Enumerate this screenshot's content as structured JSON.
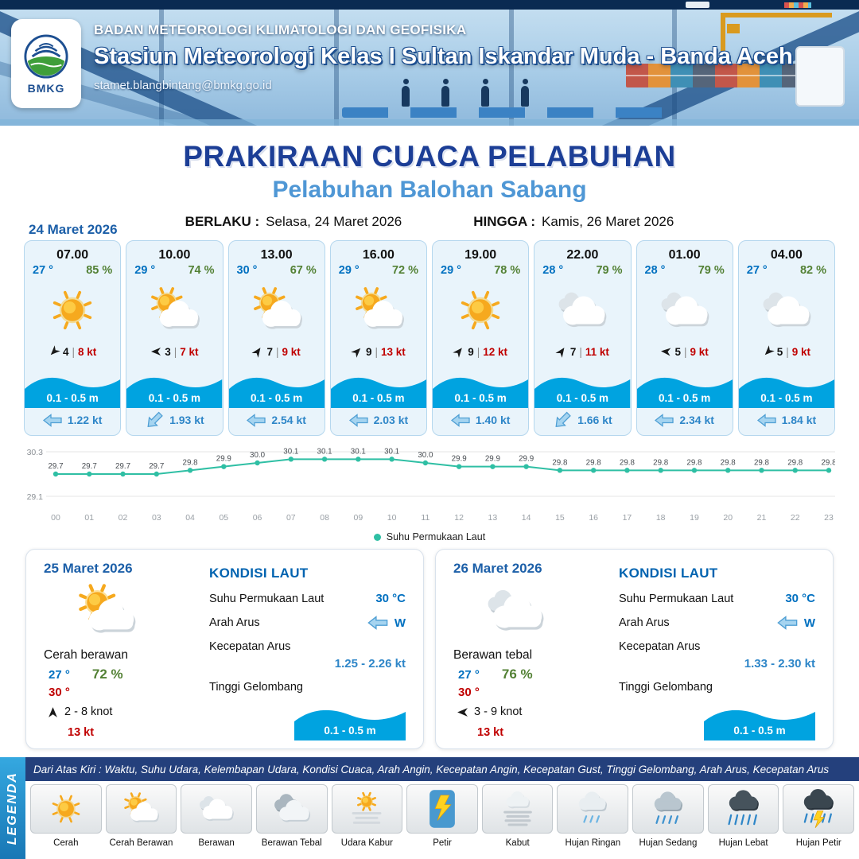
{
  "header": {
    "agency": "BADAN METEOROLOGI KLIMATOLOGI DAN GEOFISIKA",
    "station": "Stasiun Meteorologi Kelas I Sultan Iskandar Muda - Banda Aceh",
    "email": "stamet.blangbintang@bmkg.go.id",
    "logo_text": "BMKG"
  },
  "title": {
    "main": "PRAKIRAAN CUACA PELABUHAN",
    "port": "Pelabuhan Balohan Sabang",
    "berlaku_label": "BERLAKU :",
    "berlaku_value": "Selasa, 24 Maret 2026",
    "hingga_label": "HINGGA :",
    "hingga_value": "Kamis, 26 Maret 2026"
  },
  "forecast": {
    "date": "24 Maret 2026",
    "divider": "|",
    "cards": [
      {
        "time": "07.00",
        "temp": "27 °",
        "rh": "85 %",
        "icon": "cerah",
        "wind_rot": 135,
        "wind_speed": "4",
        "gust": "8 kt",
        "wave": "0.1 - 0.5 m",
        "cur_rot": 0,
        "current": "1.22 kt"
      },
      {
        "time": "10.00",
        "temp": "29 °",
        "rh": "74 %",
        "icon": "cerah-berawan",
        "wind_rot": 180,
        "wind_speed": "3",
        "gust": "7 kt",
        "wave": "0.1 - 0.5 m",
        "cur_rot": -45,
        "current": "1.93 kt"
      },
      {
        "time": "13.00",
        "temp": "30 °",
        "rh": "67 %",
        "icon": "cerah-berawan",
        "wind_rot": -55,
        "wind_speed": "7",
        "gust": "9 kt",
        "wave": "0.1 - 0.5 m",
        "cur_rot": 0,
        "current": "2.54 kt"
      },
      {
        "time": "16.00",
        "temp": "29 °",
        "rh": "72 %",
        "icon": "cerah-berawan",
        "wind_rot": -45,
        "wind_speed": "9",
        "gust": "13 kt",
        "wave": "0.1 - 0.5 m",
        "cur_rot": 0,
        "current": "2.03 kt"
      },
      {
        "time": "19.00",
        "temp": "29 °",
        "rh": "78 %",
        "icon": "cerah",
        "wind_rot": -50,
        "wind_speed": "9",
        "gust": "12 kt",
        "wave": "0.1 - 0.5 m",
        "cur_rot": 0,
        "current": "1.40 kt"
      },
      {
        "time": "22.00",
        "temp": "28 °",
        "rh": "79 %",
        "icon": "berawan",
        "wind_rot": -55,
        "wind_speed": "7",
        "gust": "11 kt",
        "wave": "0.1 - 0.5 m",
        "cur_rot": -45,
        "current": "1.66 kt"
      },
      {
        "time": "01.00",
        "temp": "28 °",
        "rh": "79 %",
        "icon": "berawan",
        "wind_rot": 185,
        "wind_speed": "5",
        "gust": "9 kt",
        "wave": "0.1 - 0.5 m",
        "cur_rot": 0,
        "current": "2.34 kt"
      },
      {
        "time": "04.00",
        "temp": "27 °",
        "rh": "82 %",
        "icon": "berawan",
        "wind_rot": 135,
        "wind_speed": "5",
        "gust": "9 kt",
        "wave": "0.1 - 0.5 m",
        "cur_rot": 0,
        "current": "1.84 kt"
      }
    ]
  },
  "chart_data": {
    "type": "line",
    "x": [
      "00",
      "01",
      "02",
      "03",
      "04",
      "05",
      "06",
      "07",
      "08",
      "09",
      "10",
      "11",
      "12",
      "13",
      "14",
      "15",
      "16",
      "17",
      "18",
      "19",
      "20",
      "21",
      "22",
      "23"
    ],
    "series": [
      {
        "name": "Suhu Permukaan Laut",
        "values": [
          29.7,
          29.7,
          29.7,
          29.7,
          29.8,
          29.9,
          30.0,
          30.1,
          30.1,
          30.1,
          30.1,
          30.0,
          29.9,
          29.9,
          29.9,
          29.8,
          29.8,
          29.8,
          29.8,
          29.8,
          29.8,
          29.8,
          29.8,
          29.8
        ]
      }
    ],
    "ylim": [
      29.1,
      30.3
    ],
    "yticks": [
      30.3,
      29.1
    ],
    "line_color": "#2fbfa4",
    "grid": true,
    "legend_position": "bottom"
  },
  "days": [
    {
      "date": "25 Maret 2026",
      "icon": "cerah-berawan",
      "cond": "Cerah berawan",
      "tmin": "27 °",
      "rh": "72 %",
      "tmax": "30 °",
      "wind_rot": -90,
      "wind": "2 - 8 knot",
      "gust": "13 kt",
      "sea": {
        "heading": "KONDISI LAUT",
        "sst_label": "Suhu Permukaan Laut",
        "sst": "30 °C",
        "dir_label": "Arah Arus",
        "dir": "W",
        "dir_rot": 0,
        "spd_label": "Kecepatan Arus",
        "spd": "1.25 - 2.26 kt",
        "wave_label": "Tinggi Gelombang",
        "wave": "0.1 - 0.5 m"
      }
    },
    {
      "date": "26 Maret 2026",
      "icon": "berawan",
      "cond": "Berawan tebal",
      "tmin": "27 °",
      "rh": "76 %",
      "tmax": "30 °",
      "wind_rot": 180,
      "wind": "3 - 9 knot",
      "gust": "13 kt",
      "sea": {
        "heading": "KONDISI LAUT",
        "sst_label": "Suhu Permukaan Laut",
        "sst": "30 °C",
        "dir_label": "Arah Arus",
        "dir": "W",
        "dir_rot": 0,
        "spd_label": "Kecepatan Arus",
        "spd": "1.33 - 2.30 kt",
        "wave_label": "Tinggi Gelombang",
        "wave": "0.1 - 0.5 m"
      }
    }
  ],
  "legend": {
    "title": "LEGENDA",
    "caption": "Dari Atas Kiri : Waktu, Suhu Udara, Kelembapan Udara, Kondisi Cuaca, Arah Angin, Kecepatan Angin, Kecepatan Gust, Tinggi Gelombang, Arah Arus, Kecepatan Arus",
    "items": [
      {
        "label": "Cerah",
        "icon": "cerah"
      },
      {
        "label": "Cerah Berawan",
        "icon": "cerah-berawan"
      },
      {
        "label": "Berawan",
        "icon": "berawan"
      },
      {
        "label": "Berawan Tebal",
        "icon": "berawan-tebal"
      },
      {
        "label": "Udara Kabur",
        "icon": "udara-kabur"
      },
      {
        "label": "Petir",
        "icon": "petir"
      },
      {
        "label": "Kabut",
        "icon": "kabut"
      },
      {
        "label": "Hujan Ringan",
        "icon": "hujan-ringan"
      },
      {
        "label": "Hujan Sedang",
        "icon": "hujan-sedang"
      },
      {
        "label": "Hujan Lebat",
        "icon": "hujan-lebat"
      },
      {
        "label": "Hujan Petir",
        "icon": "hujan-petir"
      }
    ]
  },
  "colors": {
    "temp_blue": "#0070c0",
    "rh_green": "#538135",
    "gust_red": "#c00000",
    "wave_blue": "#00a3e0",
    "title_navy": "#1c3e96",
    "port_blue": "#4f97d5",
    "band_navy": "#24407c",
    "legenda_teal": "#2e9bd6",
    "line_teal": "#2fbfa4"
  }
}
